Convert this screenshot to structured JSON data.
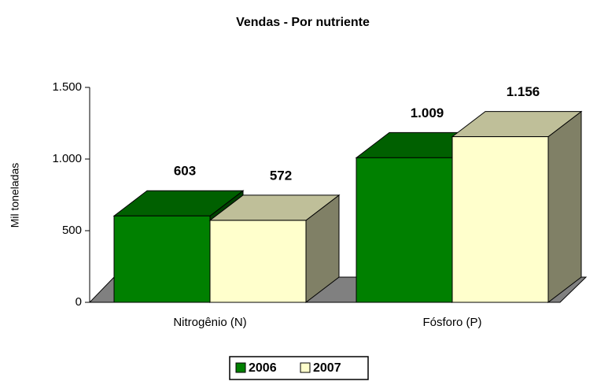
{
  "chart_data": {
    "type": "bar3d",
    "title": "Vendas - Por nutriente",
    "y_label": "Mil toneladas",
    "categories": [
      "Nitrogênio (N)",
      "Fósforo (P)"
    ],
    "series": [
      {
        "name": "2006",
        "color": "#008000",
        "values": [
          603,
          1009
        ],
        "value_labels": [
          "603",
          "1.009"
        ]
      },
      {
        "name": "2007",
        "color": "#ffffcc",
        "values": [
          572,
          1156
        ],
        "value_labels": [
          "572",
          "1.156"
        ]
      }
    ],
    "ylim": [
      0,
      1500
    ],
    "yticks": [
      0,
      500,
      {
        "value": 1000,
        "label": "1.000"
      },
      {
        "value": 1500,
        "label": "1.500"
      }
    ],
    "legend": "bottom"
  }
}
